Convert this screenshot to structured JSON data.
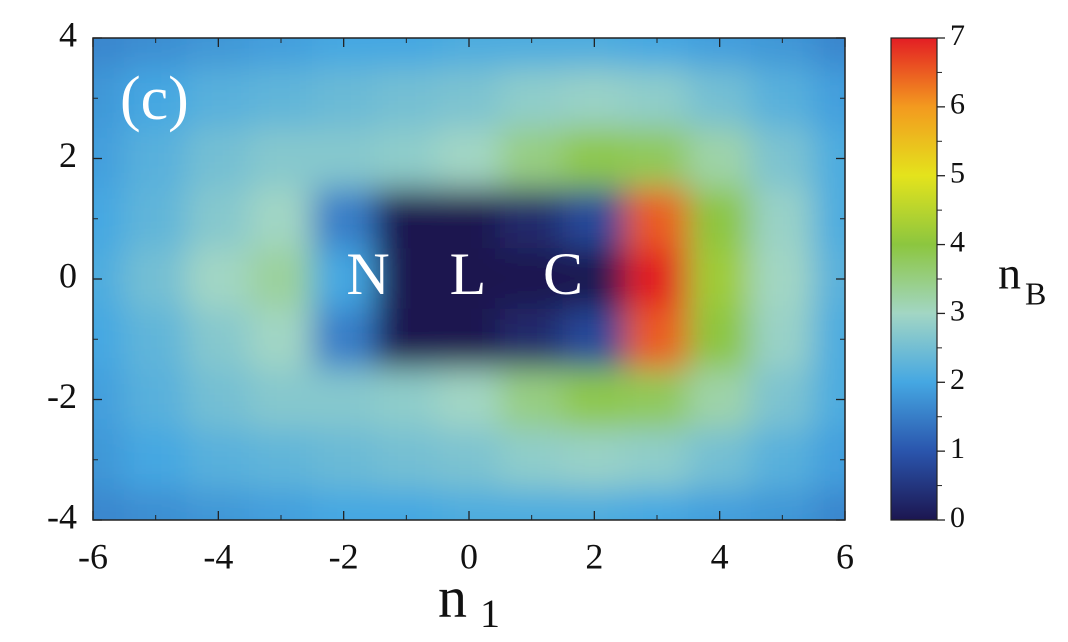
{
  "chart_data": {
    "type": "heatmap",
    "panel_label": "(c)",
    "annotations": [
      "N",
      "L",
      "C"
    ],
    "xlabel": "n",
    "xlabel_sub": "1",
    "colorbar_label": "n",
    "colorbar_label_sub": "B",
    "x": [
      -6,
      -5,
      -4,
      -3,
      -2,
      -1,
      0,
      1,
      2,
      3,
      4,
      5,
      6
    ],
    "y": [
      4,
      3,
      2,
      1,
      0,
      -1,
      -2,
      -3,
      -4
    ],
    "values": [
      [
        1.6,
        1.7,
        1.8,
        1.9,
        2.0,
        2.0,
        2.1,
        2.1,
        2.1,
        2.0,
        1.9,
        1.8,
        1.6
      ],
      [
        1.8,
        2.0,
        2.2,
        2.3,
        2.4,
        2.5,
        2.6,
        2.8,
        2.9,
        2.8,
        2.5,
        2.2,
        1.9
      ],
      [
        1.9,
        2.2,
        2.5,
        2.7,
        2.7,
        2.8,
        3.0,
        3.5,
        3.9,
        3.8,
        3.2,
        2.6,
        2.1
      ],
      [
        2.0,
        2.3,
        2.7,
        3.0,
        1.5,
        0,
        0,
        0.3,
        0.8,
        6.5,
        4.0,
        2.9,
        2.1
      ],
      [
        2.1,
        2.5,
        3.0,
        3.3,
        2.0,
        0,
        0,
        0,
        0,
        7.0,
        4.2,
        3.0,
        2.2
      ],
      [
        2.0,
        2.3,
        2.7,
        3.0,
        1.5,
        0,
        0,
        0.3,
        0.8,
        6.5,
        4.0,
        2.9,
        2.1
      ],
      [
        1.9,
        2.2,
        2.5,
        2.7,
        2.7,
        2.8,
        3.0,
        3.5,
        3.9,
        3.8,
        3.2,
        2.6,
        2.1
      ],
      [
        1.8,
        2.0,
        2.2,
        2.3,
        2.4,
        2.5,
        2.6,
        2.8,
        2.9,
        2.8,
        2.5,
        2.2,
        1.9
      ],
      [
        1.6,
        1.7,
        1.8,
        1.9,
        2.0,
        2.0,
        2.1,
        2.1,
        2.1,
        2.0,
        1.9,
        1.8,
        1.6
      ]
    ],
    "xlim": [
      -6,
      6
    ],
    "ylim": [
      -4,
      4
    ],
    "xticks": [
      -6,
      -4,
      -2,
      0,
      2,
      4,
      6
    ],
    "yticks": [
      -4,
      -2,
      0,
      2,
      4
    ],
    "clim": [
      0,
      7
    ],
    "cticks": [
      0,
      1,
      2,
      3,
      4,
      5,
      6,
      7
    ],
    "colorscale": [
      {
        "value": 0,
        "color": "#1c1650"
      },
      {
        "value": 1,
        "color": "#2a55ad"
      },
      {
        "value": 2,
        "color": "#45a7e2"
      },
      {
        "value": 3,
        "color": "#a2d6c4"
      },
      {
        "value": 4,
        "color": "#8cc63f"
      },
      {
        "value": 5,
        "color": "#e4e31c"
      },
      {
        "value": 6,
        "color": "#f39a1f"
      },
      {
        "value": 7,
        "color": "#e31e24"
      }
    ]
  }
}
